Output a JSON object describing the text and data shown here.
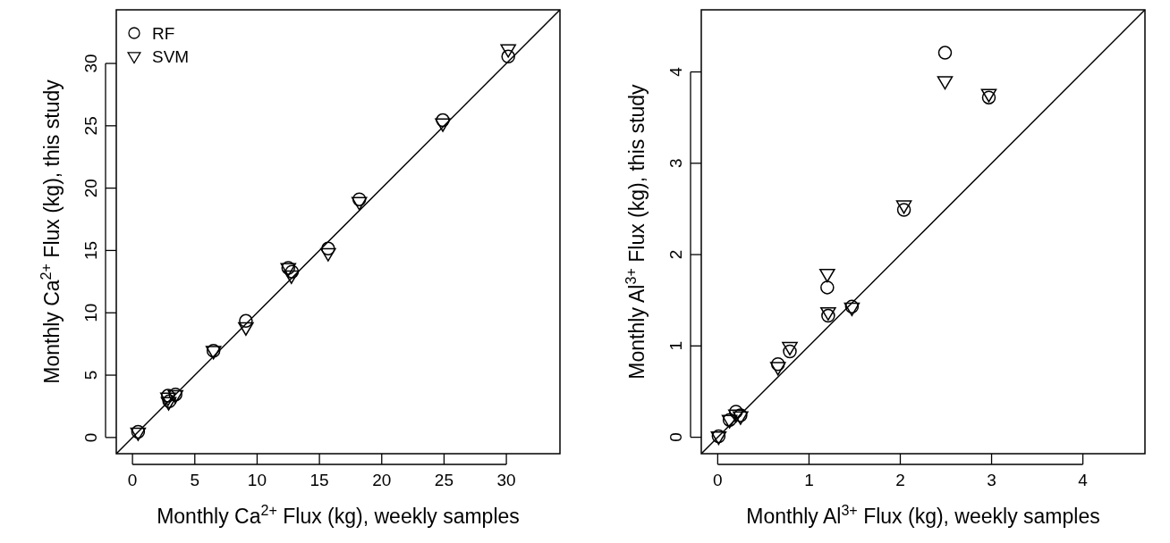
{
  "chart_data": [
    {
      "type": "scatter",
      "xlabel": "Monthly Ca$^{2+}$ Flux (kg), weekly samples",
      "ylabel": "Monthly Ca$^{2+}$ Flux (kg), this study",
      "xlim": [
        -1.3,
        34.3
      ],
      "ylim": [
        -1.3,
        34.3
      ],
      "xticks": [
        0,
        5,
        10,
        15,
        20,
        25,
        30
      ],
      "yticks": [
        0,
        5,
        10,
        15,
        20,
        25,
        30
      ],
      "legend": "top left",
      "grid": false,
      "series": [
        {
          "name": "RF",
          "color": "#000000",
          "marker": "circle",
          "x": [
            0.45,
            2.85,
            3.45,
            2.95,
            6.5,
            9.1,
            12.5,
            12.8,
            15.7,
            18.2,
            24.9,
            30.15
          ],
          "values": [
            0.45,
            3.35,
            3.45,
            2.9,
            6.95,
            9.35,
            13.6,
            13.3,
            15.15,
            19.1,
            25.45,
            30.55
          ]
        },
        {
          "name": "SVM",
          "color": "#000000",
          "marker": "triangle",
          "x": [
            0.45,
            2.85,
            2.9,
            3.45,
            6.5,
            9.1,
            12.5,
            12.75,
            15.7,
            18.2,
            24.9,
            30.15
          ],
          "values": [
            0.4,
            3.2,
            2.85,
            3.4,
            6.95,
            8.85,
            13.6,
            13.0,
            14.8,
            18.9,
            25.2,
            31.15
          ]
        },
        {
          "type": "line",
          "color": "#000000",
          "x": [
            -1.3,
            34.3
          ],
          "values": [
            -1.3,
            34.3
          ]
        }
      ]
    },
    {
      "type": "scatter",
      "xlabel": "Monthly Al$^{3+}$ Flux (kg), weekly samples",
      "ylabel": "Monthly Al$^{3+}$ Flux (kg), this study",
      "xlim": [
        -0.18,
        4.68
      ],
      "ylim": [
        -0.18,
        4.68
      ],
      "xticks": [
        0,
        1,
        2,
        3,
        4
      ],
      "yticks": [
        0,
        1,
        2,
        3,
        4
      ],
      "grid": false,
      "series": [
        {
          "color": "#000000",
          "marker": "circle",
          "x": [
            0.01,
            0.13,
            0.2,
            0.25,
            0.66,
            0.79,
            1.2,
            1.21,
            1.47,
            2.04,
            2.49,
            2.97
          ],
          "values": [
            0.01,
            0.19,
            0.28,
            0.24,
            0.8,
            0.94,
            1.64,
            1.33,
            1.43,
            2.49,
            4.21,
            3.72
          ]
        },
        {
          "color": "#000000",
          "marker": "triangle",
          "x": [
            0.01,
            0.13,
            0.2,
            0.25,
            0.66,
            0.79,
            1.2,
            1.21,
            1.47,
            2.04,
            2.49,
            2.97
          ],
          "values": [
            0.01,
            0.19,
            0.25,
            0.23,
            0.77,
            0.99,
            1.79,
            1.37,
            1.42,
            2.54,
            3.9,
            3.76
          ]
        },
        {
          "type": "line",
          "color": "#000000",
          "x": [
            -0.18,
            4.68
          ],
          "values": [
            -0.18,
            4.68
          ]
        }
      ]
    }
  ]
}
